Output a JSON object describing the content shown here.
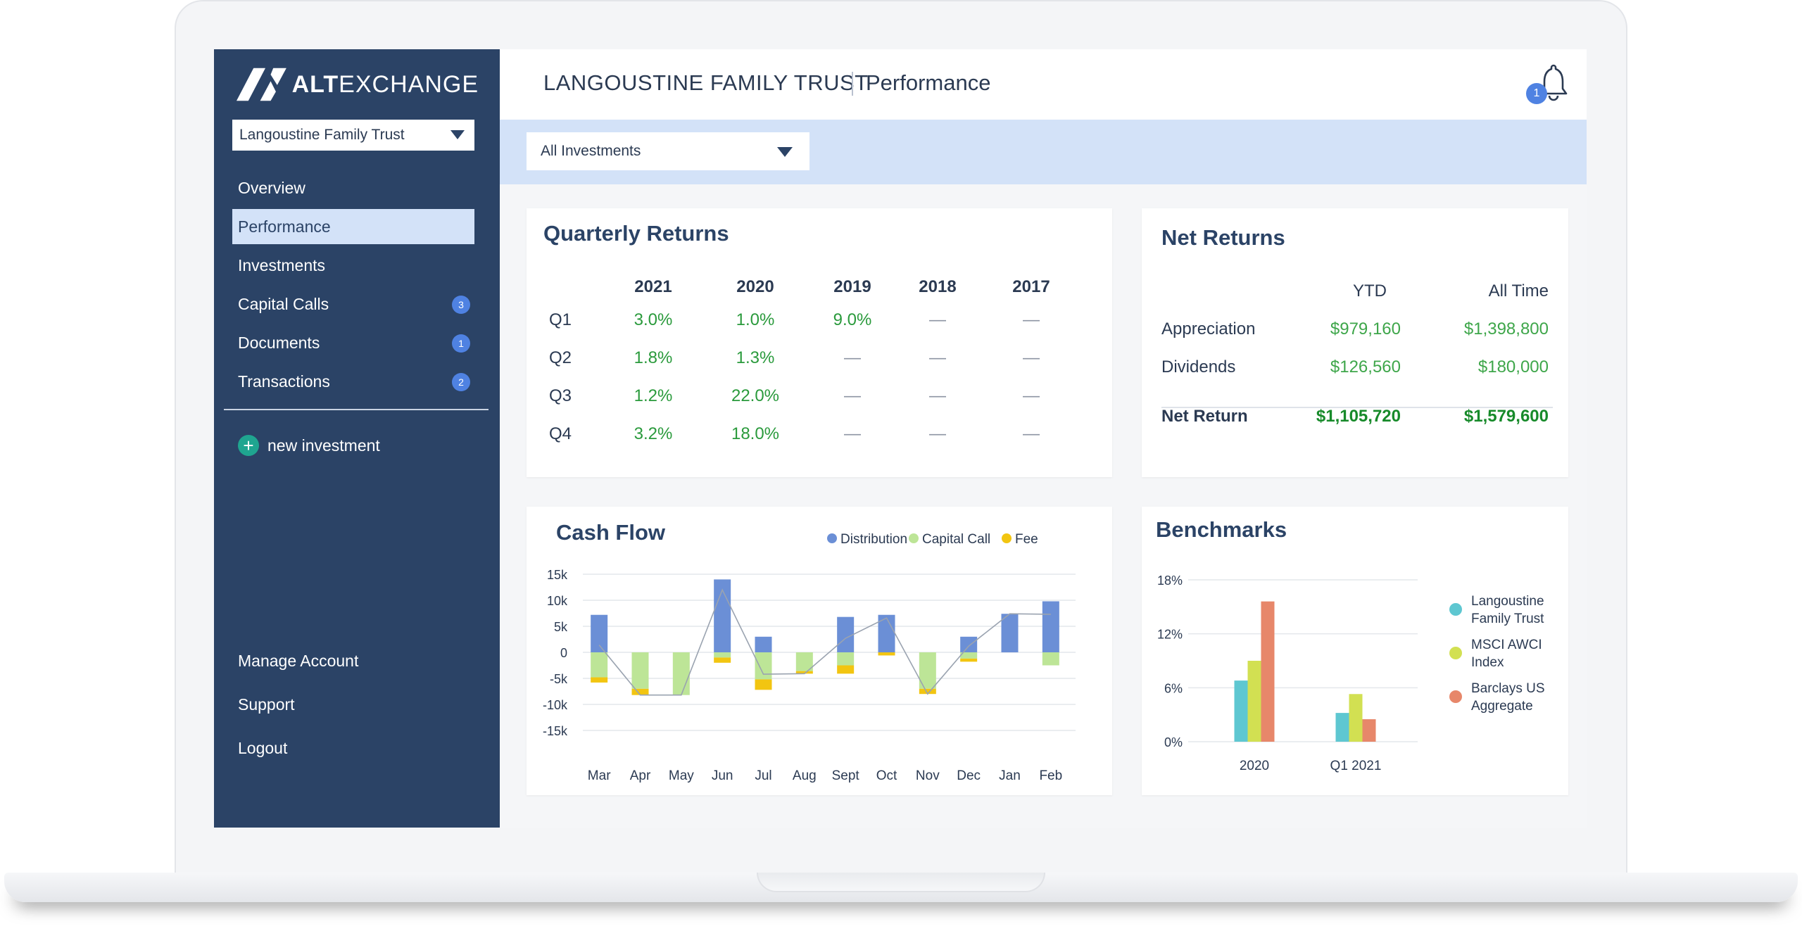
{
  "brand": {
    "logo_bold": "ALT",
    "logo_light": "EXCHANGE"
  },
  "sidebar": {
    "account": "Langoustine Family Trust",
    "items": [
      {
        "label": "Overview",
        "badge": ""
      },
      {
        "label": "Performance",
        "badge": ""
      },
      {
        "label": "Investments",
        "badge": ""
      },
      {
        "label": "Capital Calls",
        "badge": "3"
      },
      {
        "label": "Documents",
        "badge": "1"
      },
      {
        "label": "Transactions",
        "badge": "2"
      }
    ],
    "new_investment": "new investment",
    "bottom": [
      "Manage Account",
      "Support",
      "Logout"
    ]
  },
  "header": {
    "title": "LANGOUSTINE FAMILY TRUST",
    "page": "Performance",
    "notifications": "1"
  },
  "filter": {
    "selected": "All Investments"
  },
  "quarterly_returns": {
    "title": "Quarterly Returns",
    "years": [
      "2021",
      "2020",
      "2019",
      "2018",
      "2017"
    ],
    "rows": [
      {
        "q": "Q1",
        "vals": [
          "3.0%",
          "1.0%",
          "9.0%",
          "—",
          "—"
        ]
      },
      {
        "q": "Q2",
        "vals": [
          "1.8%",
          "1.3%",
          "—",
          "—",
          "—"
        ]
      },
      {
        "q": "Q3",
        "vals": [
          "1.2%",
          "22.0%",
          "—",
          "—",
          "—"
        ]
      },
      {
        "q": "Q4",
        "vals": [
          "3.2%",
          "18.0%",
          "—",
          "—",
          "—"
        ]
      }
    ]
  },
  "net_returns": {
    "title": "Net Returns",
    "col1": "YTD",
    "col2": "All Time",
    "rows": [
      {
        "label": "Appreciation",
        "ytd": "$979,160",
        "all": "$1,398,800"
      },
      {
        "label": "Dividends",
        "ytd": "$126,560",
        "all": "$180,000"
      }
    ],
    "total": {
      "label": "Net Return",
      "ytd": "$1,105,720",
      "all": "$1,579,600"
    }
  },
  "colors": {
    "distribution": "#6b8fd6",
    "capital_call": "#bde597",
    "fee": "#f2c511",
    "lft": "#5ec7d1",
    "msci": "#d2e052",
    "barclays": "#e7876a"
  },
  "chart_data": [
    {
      "type": "bar",
      "title": "Cash Flow",
      "categories": [
        "Mar",
        "Apr",
        "May",
        "Jun",
        "Jul",
        "Aug",
        "Sept",
        "Oct",
        "Nov",
        "Dec",
        "Jan",
        "Feb"
      ],
      "series": [
        {
          "name": "Distribution",
          "values": [
            7.2,
            0,
            0,
            14,
            3,
            0,
            6.8,
            7.2,
            0,
            3,
            7.4,
            9.8
          ]
        },
        {
          "name": "Capital Call",
          "values": [
            -4.8,
            -7,
            -8.2,
            -1,
            -5.2,
            -3.6,
            -2.5,
            0,
            -7,
            -1.2,
            0,
            -2.5
          ]
        },
        {
          "name": "Fee",
          "values": [
            -1,
            -1.2,
            0,
            -1,
            -2,
            -0.5,
            -1.6,
            -0.6,
            -1,
            -0.6,
            0,
            0
          ]
        }
      ],
      "ylim": [
        -15,
        15
      ],
      "yticks": [
        "15k",
        "10k",
        "5k",
        "0",
        "-5k",
        "-10k",
        "-15k"
      ],
      "ytick_values": [
        15,
        10,
        5,
        0,
        -5,
        -10,
        -15
      ],
      "legend": "top-right",
      "grid": true
    },
    {
      "type": "bar",
      "title": "Benchmarks",
      "categories": [
        "2020",
        "Q1 2021"
      ],
      "series": [
        {
          "name": "Langoustine Family Trust",
          "values": [
            6.8,
            3.2
          ]
        },
        {
          "name": "MSCI AWCI Index",
          "values": [
            9.0,
            5.3
          ]
        },
        {
          "name": "Barclays US Aggregate",
          "values": [
            15.6,
            2.5
          ]
        }
      ],
      "ylim": [
        0,
        18
      ],
      "yticks": [
        "18%",
        "12%",
        "6%",
        "0%"
      ],
      "ytick_values": [
        18,
        12,
        6,
        0
      ],
      "legend": "right",
      "legend_lines": [
        [
          "Langoustine",
          "Family Trust"
        ],
        [
          "MSCI AWCI",
          "Index"
        ],
        [
          "Barclays US",
          "Aggregate"
        ]
      ],
      "grid": true
    }
  ]
}
